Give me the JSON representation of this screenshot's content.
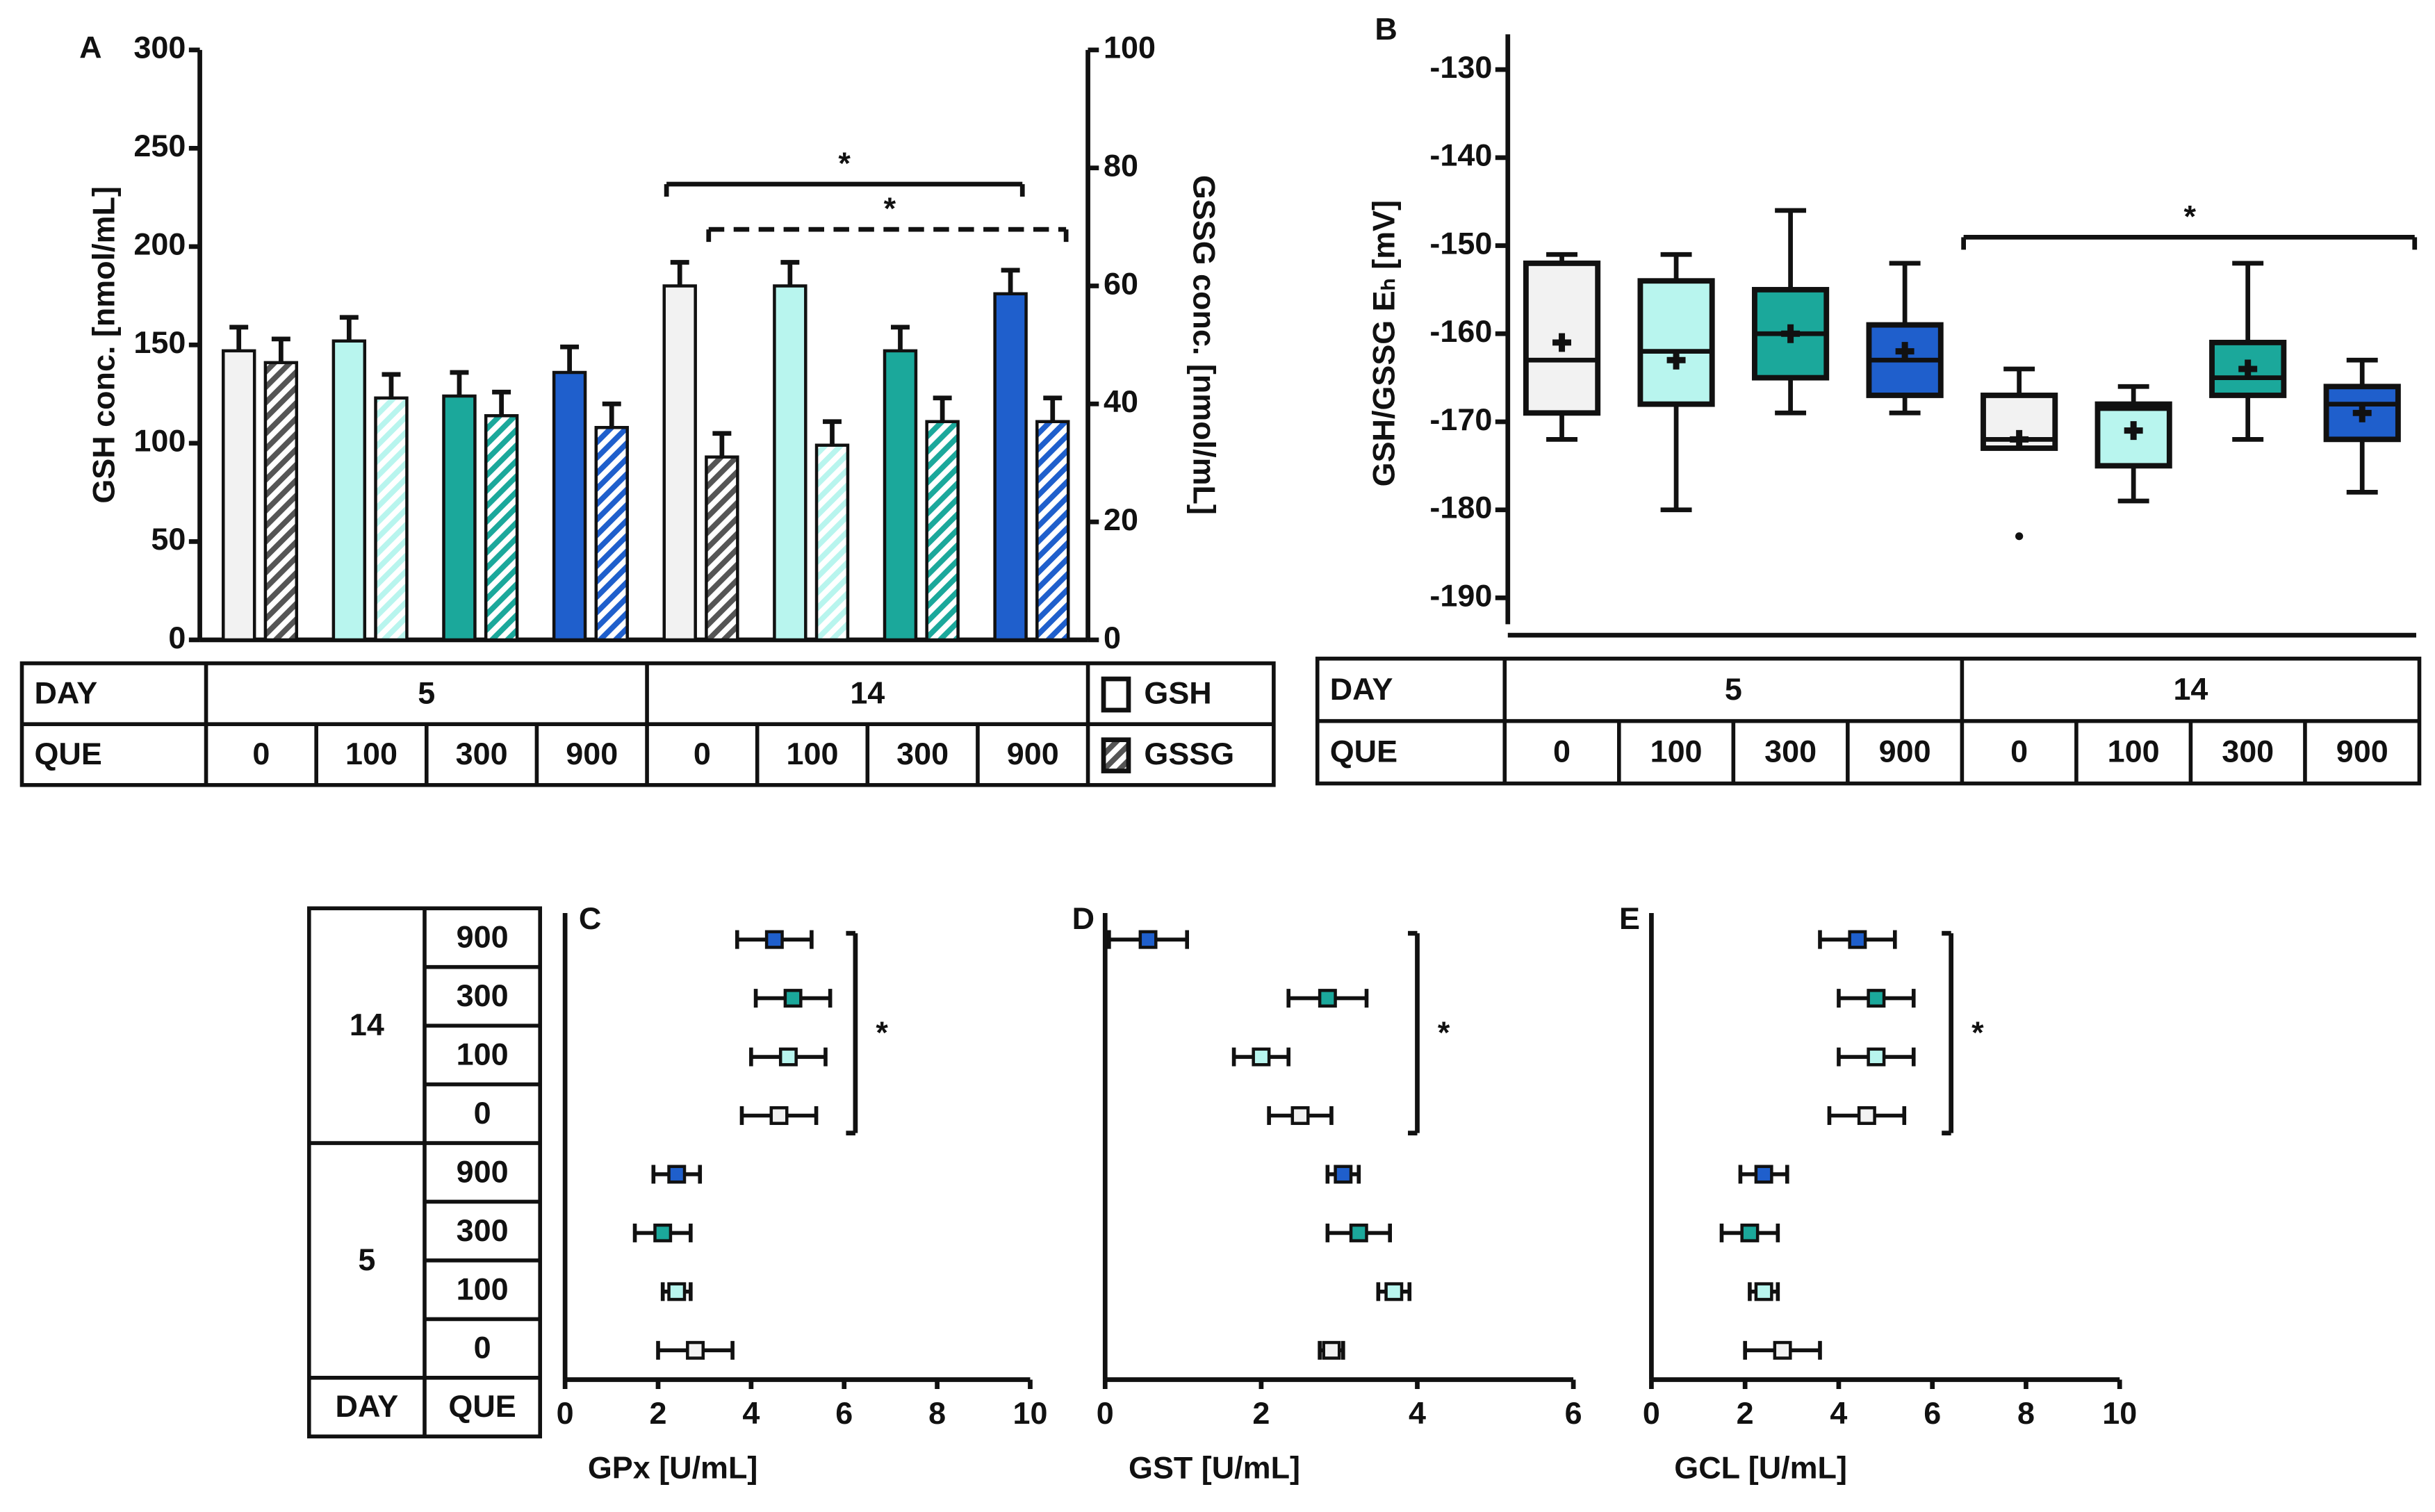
{
  "chart_data": [
    {
      "type": "bar",
      "label": "A",
      "ylabel": "GSH conc. [nmol/mL]",
      "y2label": "GSSG conc. [nmol/mL]",
      "ylim": [
        0,
        300
      ],
      "yticks": [
        0,
        50,
        100,
        150,
        200,
        250,
        300
      ],
      "y2lim": [
        0,
        100
      ],
      "y2ticks": [
        0,
        20,
        40,
        60,
        80,
        100
      ],
      "table": {
        "headers": [
          "DAY",
          "QUE"
        ],
        "days": [
          "5",
          "14"
        ]
      },
      "categories": [
        "0",
        "100",
        "300",
        "900",
        "0",
        "100",
        "300",
        "900"
      ],
      "colors": [
        "#f2f2f2",
        "#b8f5ee",
        "#1ba89b",
        "#1f5fcc",
        "#f2f2f2",
        "#b8f5ee",
        "#1ba89b",
        "#1f5fcc"
      ],
      "series": [
        {
          "name": "GSH",
          "values": [
            147,
            152,
            124,
            136,
            180,
            180,
            147,
            176
          ],
          "errors": [
            12,
            12,
            12,
            13,
            12,
            12,
            12,
            12
          ]
        },
        {
          "name": "GSSG",
          "axis": "y2",
          "values": [
            47,
            41,
            38,
            36,
            31,
            33,
            37,
            37
          ],
          "errors": [
            4,
            4,
            4,
            4,
            4,
            4,
            4,
            4
          ]
        }
      ],
      "annotations": [
        "*",
        "*"
      ]
    },
    {
      "type": "box",
      "label": "B",
      "ylabel": "GSH/GSSG Eₕ [mV]",
      "ylim": [
        -193,
        -126
      ],
      "yticks": [
        -190,
        -180,
        -170,
        -160,
        -150,
        -140,
        -130
      ],
      "table": {
        "headers": [
          "DAY",
          "QUE"
        ],
        "days": [
          "5",
          "14"
        ]
      },
      "categories": [
        "0",
        "100",
        "300",
        "900",
        "0",
        "100",
        "300",
        "900"
      ],
      "colors": [
        "#f2f2f2",
        "#b8f5ee",
        "#1ba89b",
        "#1f5fcc",
        "#f2f2f2",
        "#b8f5ee",
        "#1ba89b",
        "#1f5fcc"
      ],
      "low": [
        -172,
        -180,
        -169,
        -169,
        -173,
        -179,
        -172,
        -178
      ],
      "q1": [
        -169,
        -168,
        -165,
        -167,
        -173,
        -175,
        -167,
        -172
      ],
      "median": [
        -163,
        -162,
        -160,
        -163,
        -172,
        -168.5,
        -165,
        -168
      ],
      "q3": [
        -152,
        -154,
        -155,
        -159,
        -167,
        -168,
        -161,
        -166
      ],
      "high": [
        -151,
        -151,
        -146,
        -152,
        -164,
        -166,
        -152,
        -163
      ],
      "mean": [
        -161,
        -163,
        -160,
        -162,
        -172,
        -171,
        -164,
        -169
      ],
      "outliers": [
        null,
        null,
        null,
        null,
        -183,
        null,
        null,
        null
      ],
      "annotations": [
        "*"
      ]
    },
    {
      "type": "dot",
      "label": "C",
      "xlabel": "GPx [U/mL]",
      "xlim": [
        0,
        10
      ],
      "xticks": [
        0,
        2,
        4,
        6,
        8,
        10
      ],
      "values": [
        4.5,
        4.9,
        4.8,
        4.6,
        2.4,
        2.1,
        2.4,
        2.8
      ],
      "errors": [
        0.8,
        0.8,
        0.8,
        0.8,
        0.5,
        0.6,
        0.3,
        0.8
      ],
      "annotations": [
        "*"
      ]
    },
    {
      "type": "dot",
      "label": "D",
      "xlabel": "GST [U/mL]",
      "xlim": [
        0,
        6
      ],
      "xticks": [
        0,
        2,
        4,
        6
      ],
      "values": [
        0.55,
        2.85,
        2.0,
        2.5,
        3.05,
        3.25,
        3.7,
        2.9
      ],
      "errors": [
        0.5,
        0.5,
        0.35,
        0.4,
        0.2,
        0.4,
        0.2,
        0.15
      ],
      "annotations": [
        "*"
      ]
    },
    {
      "type": "dot",
      "label": "E",
      "xlabel": "GCL [U/mL]",
      "xlim": [
        0,
        10
      ],
      "xticks": [
        0,
        2,
        4,
        6,
        8,
        10
      ],
      "values": [
        4.4,
        4.8,
        4.8,
        4.6,
        2.4,
        2.1,
        2.4,
        2.8
      ],
      "errors": [
        0.8,
        0.8,
        0.8,
        0.8,
        0.5,
        0.6,
        0.3,
        0.8
      ],
      "annotations": [
        "*"
      ]
    }
  ],
  "row_table": {
    "headers": [
      "DAY",
      "QUE"
    ],
    "days": [
      "14",
      "5"
    ],
    "que": [
      "900",
      "300",
      "100",
      "0",
      "900",
      "300",
      "100",
      "0"
    ],
    "colors": [
      "#1f5fcc",
      "#1ba89b",
      "#b8f5ee",
      "#f2f2f2",
      "#1f5fcc",
      "#1ba89b",
      "#b8f5ee",
      "#f2f2f2"
    ]
  }
}
